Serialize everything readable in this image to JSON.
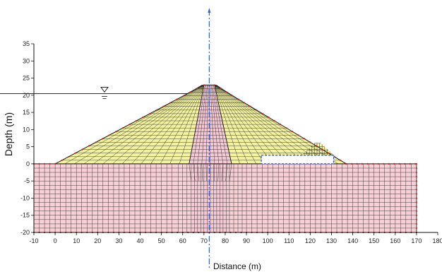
{
  "chart_data": {
    "type": "diagram",
    "title": "",
    "xlabel": "Distance (m)",
    "ylabel": "Depth (m)",
    "xlim": [
      -10,
      180
    ],
    "ylim": [
      -20,
      35
    ],
    "xticks": [
      -10,
      0,
      10,
      20,
      30,
      40,
      50,
      60,
      70,
      80,
      90,
      100,
      110,
      120,
      130,
      140,
      150,
      160,
      170,
      180
    ],
    "yticks": [
      -20,
      -15,
      -10,
      -5,
      0,
      5,
      10,
      15,
      20,
      25,
      30,
      35
    ],
    "water_level": 20.5,
    "centerline_x": 72.5,
    "foundation": {
      "x": [
        -10,
        170
      ],
      "y": [
        -20,
        0
      ]
    },
    "dam_shell_outline": {
      "x": [
        0,
        70,
        75,
        137
      ],
      "y": [
        0,
        23,
        23,
        0
      ]
    },
    "dam_core_outline": {
      "x": [
        63,
        70,
        75,
        83
      ],
      "y": [
        0,
        23,
        23,
        0
      ]
    },
    "core_in_foundation": {
      "x": [
        64,
        82
      ]
    },
    "toe_berm": {
      "x": [
        115,
        122,
        125,
        132
      ],
      "y": [
        2,
        6,
        6,
        2
      ]
    },
    "drain_box": {
      "x": [
        97,
        131
      ],
      "y": [
        0,
        2.5
      ]
    },
    "colors": {
      "shell": "#f2f2a0",
      "foundation": "#f7cfd5",
      "core": "#f3c9d4",
      "mesh": "#1a1a1a",
      "centerline": "#3a5fcd",
      "nodes": "#cc2222",
      "drain": "#2a4ccc"
    }
  }
}
